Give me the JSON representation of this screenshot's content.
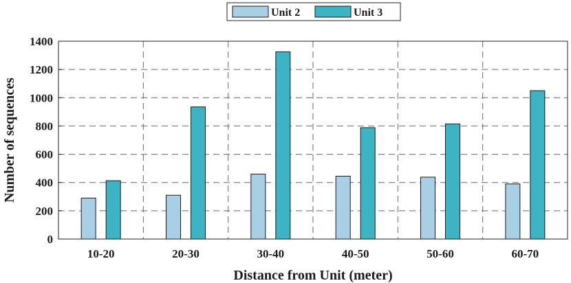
{
  "chart_data": {
    "type": "bar",
    "title": "",
    "xlabel": "Distance from Unit (meter)",
    "ylabel": "Number of sequences",
    "categories": [
      "10-20",
      "20-30",
      "30-40",
      "40-50",
      "50-60",
      "60-70"
    ],
    "series": [
      {
        "name": "Unit 2",
        "color": "#a8cfe3",
        "values": [
          290,
          310,
          460,
          445,
          438,
          390
        ]
      },
      {
        "name": "Unit 3",
        "color": "#3cb4c4",
        "values": [
          413,
          935,
          1325,
          788,
          815,
          1050
        ]
      }
    ],
    "ylim": [
      0,
      1400
    ],
    "yticks": [
      0,
      200,
      400,
      600,
      800,
      1000,
      1200,
      1400
    ],
    "grid": "dashed",
    "legend_position": "top-center"
  }
}
